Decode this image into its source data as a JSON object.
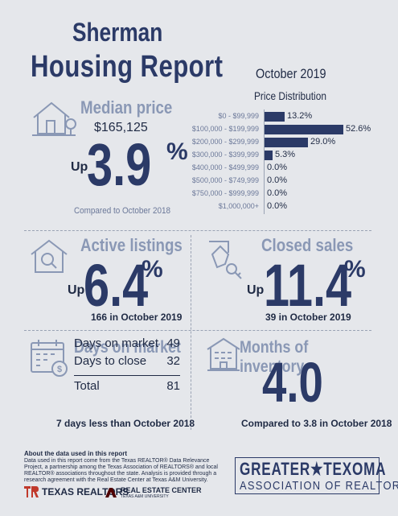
{
  "header": {
    "city": "Sherman",
    "title": "Housing Report",
    "month": "October 2019"
  },
  "median_price": {
    "heading": "Median price",
    "value": "$165,125",
    "direction": "Up",
    "change": "3.9",
    "pct_sign": "%",
    "comparison": "Compared to October 2018",
    "icon": "house-icon"
  },
  "price_distribution": {
    "title": "Price Distribution",
    "color": "#2b3a67"
  },
  "chart_data": {
    "type": "bar",
    "title": "Price Distribution",
    "orientation": "horizontal",
    "categories": [
      "$0 - $99,999",
      "$100,000 - $199,999",
      "$200,000 - $299,999",
      "$300,000 - $399,999",
      "$400,000 - $499,999",
      "$500,000 - $749,999",
      "$750,000 - $999,999",
      "$1,000,000+"
    ],
    "values": [
      13.2,
      52.6,
      29.0,
      5.3,
      0.0,
      0.0,
      0.0,
      0.0
    ],
    "value_labels": [
      "13.2%",
      "52.6%",
      "29.0%",
      "5.3%",
      "0.0%",
      "0.0%",
      "0.0%",
      "0.0%"
    ],
    "xlim": [
      0,
      52.6
    ]
  },
  "active_listings": {
    "heading": "Active listings",
    "direction": "Up",
    "change": "6.4",
    "pct_sign": "%",
    "detail": "166 in October 2019",
    "icon": "magnifier-house-icon"
  },
  "closed_sales": {
    "heading": "Closed sales",
    "direction": "Up",
    "change": "11.4",
    "pct_sign": "%",
    "detail": "39 in October 2019",
    "icon": "hand-keys-icon"
  },
  "days_on_market": {
    "heading": "Days on market",
    "rows": [
      {
        "label": "Days on market",
        "value": "49"
      },
      {
        "label": "Days to close",
        "value": "32"
      }
    ],
    "total_label": "Total",
    "total_value": "81",
    "comparison": "7 days less than October 2018",
    "icon": "calendar-dollar-icon"
  },
  "months_inventory": {
    "heading": "Months of inventory",
    "value": "4.0",
    "comparison": "Compared to 3.8 in October 2018",
    "icon": "building-icon"
  },
  "footer": {
    "heading": "About the data used in this report",
    "body": "Data used in this report come from the Texas REALTOR® Data Relevance Project, a partnership among the Texas Association of REALTORS® and local REALTOR® associations throughout the state. Analysis is provided through a research agreement with the Real Estate Center at Texas A&M University.",
    "logo_tr": "TEXAS REALTORS",
    "logo_rec": "REAL ESTATE CENTER",
    "logo_rec_sub": "TEXAS A&M UNIVERSITY",
    "gt_top": "GREATER★TEXOMA",
    "gt_bottom": "ASSOCIATION OF REALTORS"
  }
}
